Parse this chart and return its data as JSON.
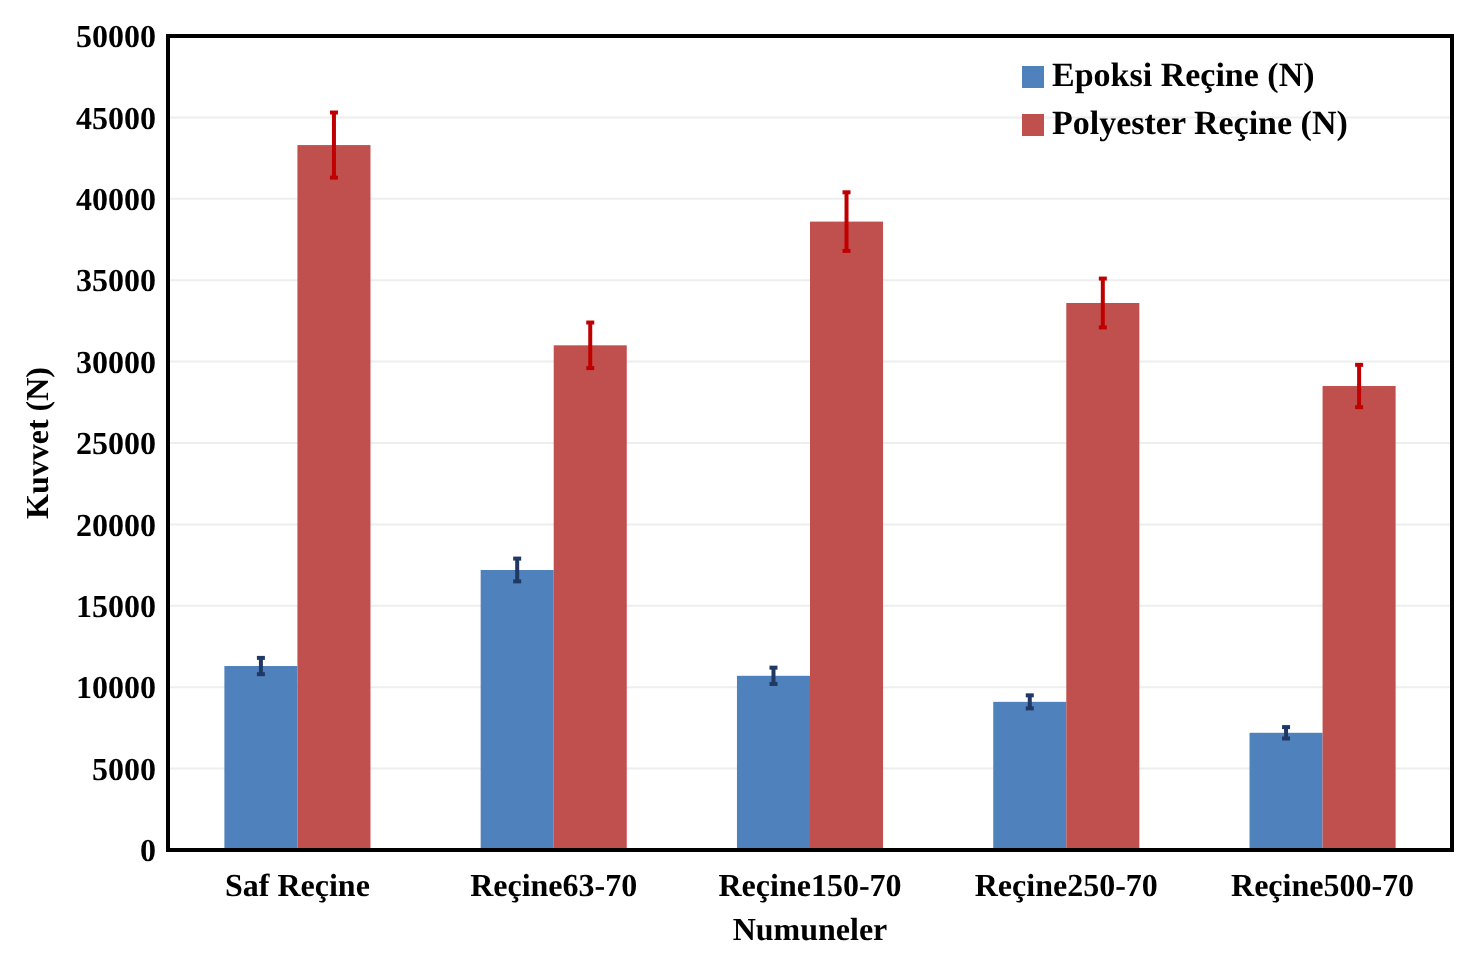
{
  "chart_data": {
    "type": "bar",
    "xlabel": "Numuneler",
    "ylabel": "Kuvvet (N)",
    "categories": [
      "Saf Reçine",
      "Reçine63-70",
      "Reçine150-70",
      "Reçine250-70",
      "Reçine500-70"
    ],
    "series": [
      {
        "name": "Epoksi Reçine (N)",
        "color": "#4f81bd",
        "values": [
          11300,
          17200,
          10700,
          9100,
          7200
        ],
        "errors": [
          500,
          700,
          500,
          400,
          350
        ]
      },
      {
        "name": "Polyester Reçine (N)",
        "color": "#c0504d",
        "values": [
          43300,
          31000,
          38600,
          33600,
          28500
        ],
        "errors": [
          2000,
          1400,
          1800,
          1500,
          1300
        ]
      }
    ],
    "ylim": [
      0,
      50000
    ],
    "yticks": [
      0,
      5000,
      10000,
      15000,
      20000,
      25000,
      30000,
      35000,
      40000,
      45000,
      50000
    ],
    "grid": "y",
    "legend": "top right"
  }
}
